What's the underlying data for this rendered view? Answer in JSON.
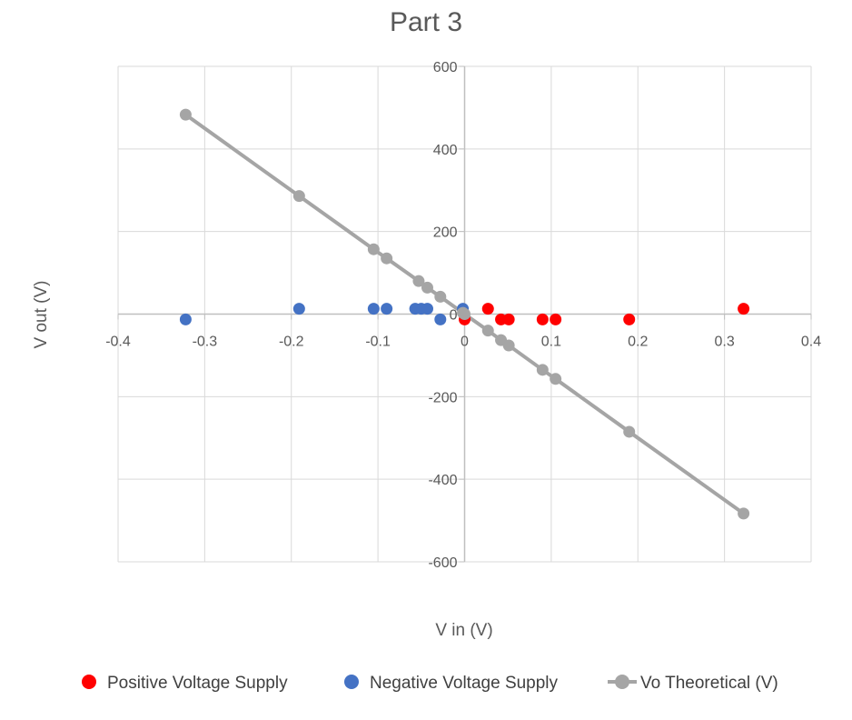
{
  "chart_data": {
    "type": "scatter",
    "title": "Part 3",
    "xlabel": "V in (V)",
    "ylabel": "V out (V)",
    "xlim": [
      -0.4,
      0.4
    ],
    "ylim": [
      -600,
      600
    ],
    "x_ticks": [
      -0.4,
      -0.3,
      -0.2,
      -0.1,
      0,
      0.1,
      0.2,
      0.3,
      0.4
    ],
    "y_ticks": [
      -600,
      -400,
      -200,
      0,
      200,
      400,
      600
    ],
    "x_tick_labels": [
      "-0.4",
      "-0.3",
      "-0.2",
      "-0.1",
      "0",
      "0.1",
      "0.2",
      "0.3",
      "0.4"
    ],
    "y_tick_labels": [
      "-600",
      "-400",
      "-200",
      "0",
      "200",
      "400",
      "600"
    ],
    "grid": true,
    "legend_position": "bottom",
    "series": [
      {
        "name": "Positive Voltage Supply",
        "color": "#ff0000",
        "mode": "markers",
        "x": [
          0,
          0.027,
          0.042,
          0.051,
          0.09,
          0.105,
          0.19,
          0.322
        ],
        "y": [
          -13,
          13,
          -13,
          -13,
          -13,
          -13,
          -13,
          13
        ]
      },
      {
        "name": "Negative Voltage Supply",
        "color": "#4472c4",
        "mode": "markers",
        "x": [
          -0.322,
          -0.191,
          -0.105,
          -0.09,
          -0.057,
          -0.05,
          -0.043,
          -0.028,
          -0.002
        ],
        "y": [
          -13,
          13,
          13,
          13,
          13,
          13,
          13,
          -13,
          13
        ]
      },
      {
        "name": "Vo Theoretical (V)",
        "color": "#a5a5a5",
        "mode": "lines+markers",
        "x": [
          -0.322,
          -0.191,
          -0.105,
          -0.09,
          -0.053,
          -0.043,
          -0.028,
          -0.002,
          0,
          0.027,
          0.042,
          0.051,
          0.09,
          0.105,
          0.19,
          0.322
        ],
        "y": [
          483,
          286,
          157,
          135,
          80,
          64,
          42,
          3,
          0,
          -40,
          -63,
          -76,
          -135,
          -157,
          -285,
          -483
        ]
      }
    ]
  }
}
